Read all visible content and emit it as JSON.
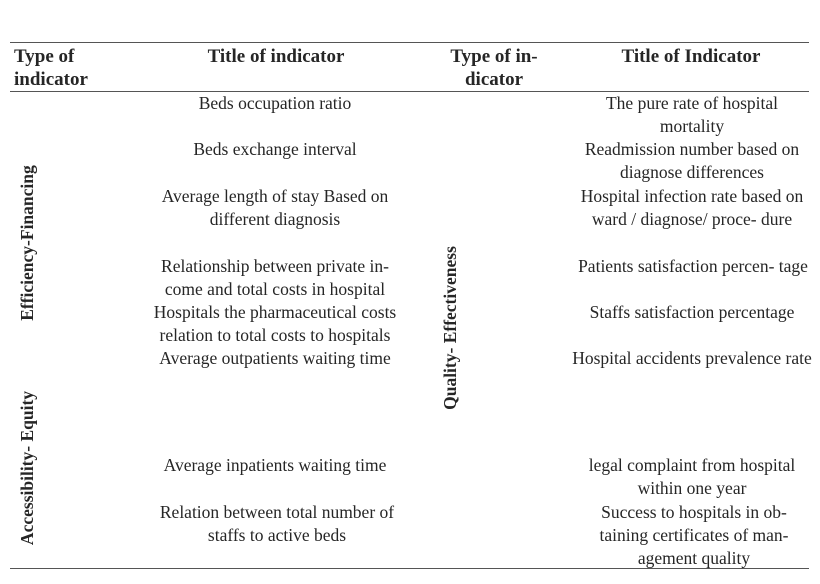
{
  "headers": {
    "type_left": "Type of indicator",
    "title_left": "Title of indicator",
    "type_right": "Type of in- dicator",
    "title_right": "Title of Indicator"
  },
  "categories": {
    "efficiency": "Efficiency-Financing",
    "accessibility": "Accessibility- Equity",
    "quality": "Quality- Effectiveness"
  },
  "left_indicators": [
    "Beds occupation ratio",
    "Beds exchange interval",
    "Average length of stay Based on different diagnosis",
    "Relationship between private in- come and total costs in hospital",
    "Hospitals the pharmaceutical costs relation to total costs to hospitals",
    "Average outpatients waiting time",
    "Average inpatients waiting time",
    "Relation between total number of staffs to active beds"
  ],
  "right_indicators": [
    "The pure rate of hospital mortality",
    "Readmission number based on diagnose differences",
    "Hospital infection rate based on ward / diagnose/ proce- dure",
    "Patients satisfaction percen- tage",
    "Staffs satisfaction percentage",
    "Hospital accidents prevalence rate",
    "legal complaint from hospital within one year",
    "Success to hospitals in ob- taining certificates of man- agement quality"
  ]
}
